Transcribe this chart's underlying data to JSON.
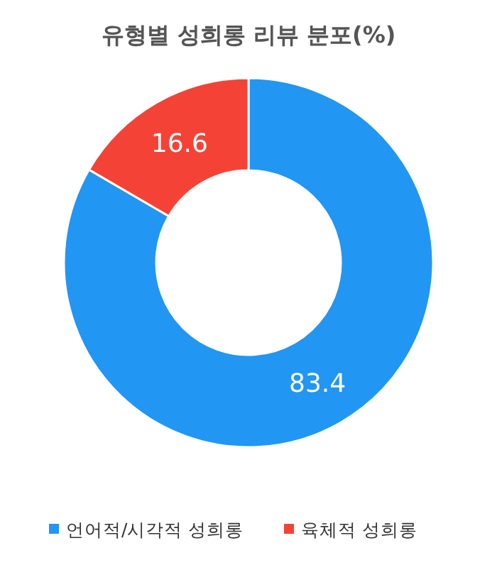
{
  "chart_data": {
    "type": "donut",
    "title": "유형별 성희롱 리뷰 분포(%)",
    "categories": [
      "언어적/시각적 성희롱",
      "육체적 성희롱"
    ],
    "values": [
      83.4,
      16.6
    ],
    "colors": [
      "#2196f3",
      "#f44336"
    ],
    "data_labels": true,
    "legend": "bottom"
  }
}
